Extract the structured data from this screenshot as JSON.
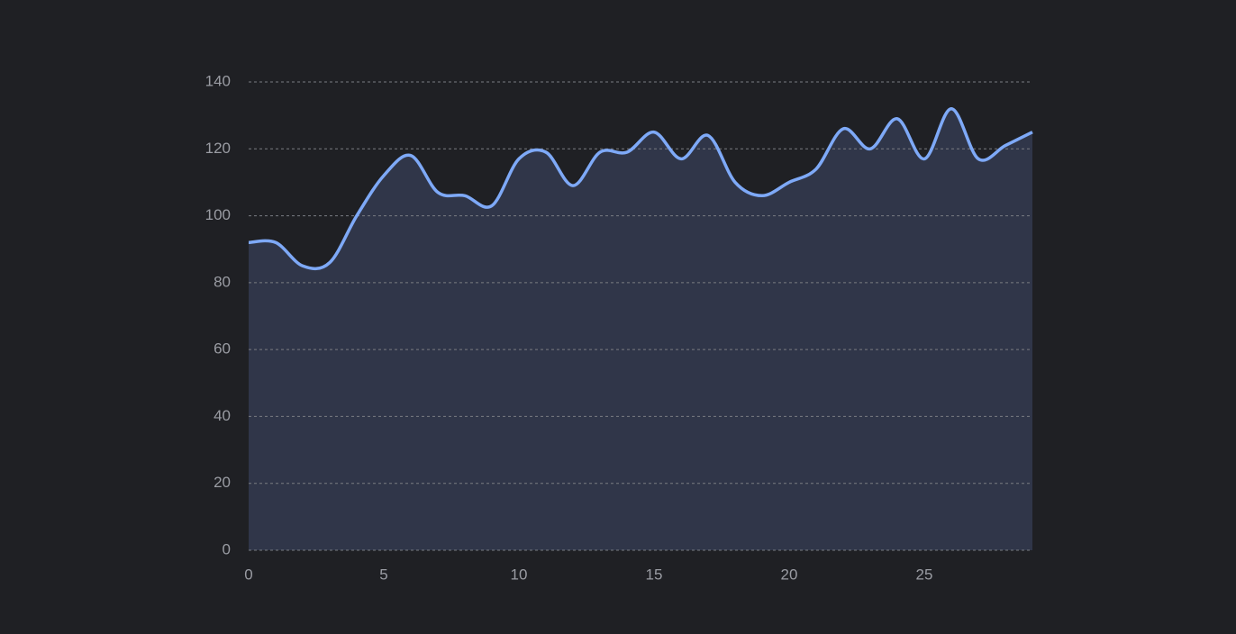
{
  "chart_data": {
    "type": "area",
    "x": [
      0,
      1,
      2,
      3,
      4,
      5,
      6,
      7,
      8,
      9,
      10,
      11,
      12,
      13,
      14,
      15,
      16,
      17,
      18,
      19,
      20,
      21,
      22,
      23,
      24,
      25,
      26,
      27,
      28,
      29
    ],
    "series": [
      {
        "color": "#7ea9f7",
        "values": [
          92,
          92,
          85,
          86,
          100,
          112,
          118,
          107,
          106,
          103,
          117,
          119,
          109,
          119,
          119,
          125,
          117,
          124,
          110,
          106,
          110,
          114,
          126,
          120,
          129,
          117,
          132,
          117,
          121,
          125
        ]
      }
    ],
    "xlim": [
      0,
      29
    ],
    "xticks": [
      0,
      5,
      10,
      15,
      20,
      25
    ],
    "ylim": [
      0,
      140
    ],
    "yticks": [
      0,
      20,
      40,
      60,
      80,
      100,
      120,
      140
    ],
    "grid": true,
    "fill": "#303649"
  }
}
